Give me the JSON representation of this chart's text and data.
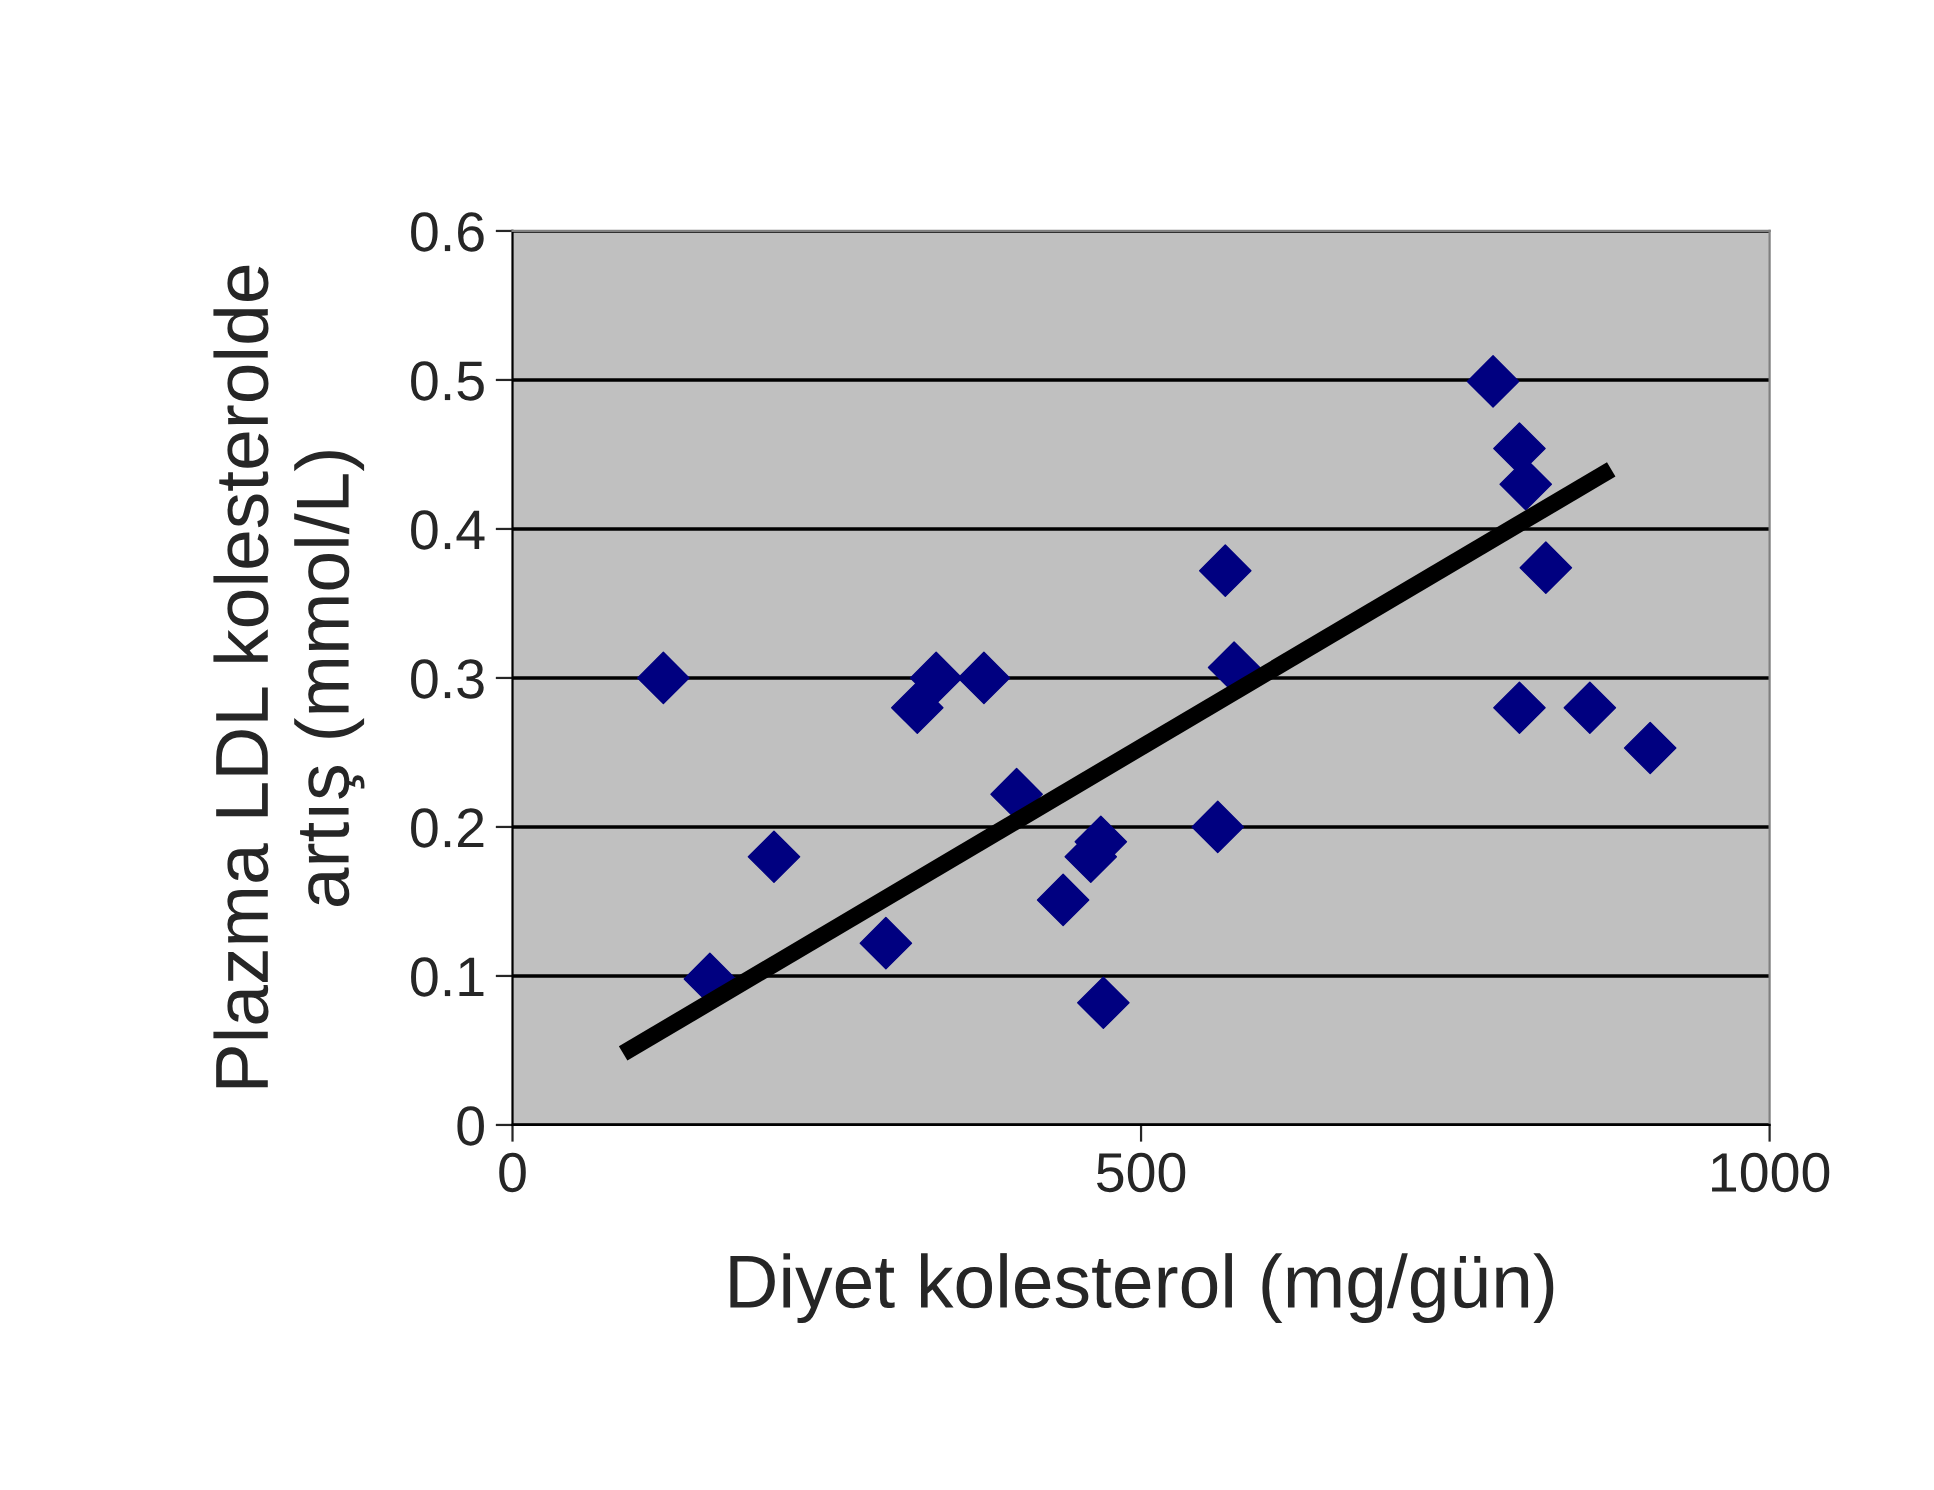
{
  "chart_data": {
    "type": "scatter",
    "xlabel": "Diyet kolesterol (mg/gün)",
    "ylabel": "Plazma LDL kolesterolde\nartış (mmol/L)",
    "xlim": [
      0,
      1000
    ],
    "xticks": [
      0,
      500,
      1000
    ],
    "ylim": [
      0,
      0.6
    ],
    "yticks": [
      0,
      0.1,
      0.2,
      0.3,
      0.4,
      0.5,
      0.6
    ],
    "grid": "y",
    "marker": "diamond",
    "series": [
      {
        "color": "#000080",
        "x": [
          120,
          157,
          208,
          297,
          322,
          337,
          375,
          401,
          438,
          460,
          468,
          470,
          561,
          567,
          574,
          780,
          801,
          806,
          822,
          801,
          857,
          905
        ],
        "values": [
          0.3,
          0.098,
          0.18,
          0.122,
          0.28,
          0.3,
          0.3,
          0.222,
          0.151,
          0.18,
          0.19,
          0.082,
          0.2,
          0.372,
          0.307,
          0.499,
          0.454,
          0.43,
          0.374,
          0.28,
          0.28,
          0.253
        ]
      },
      {
        "type": "line",
        "color": "#000000",
        "marker": "none",
        "x": [
          88,
          874
        ],
        "values": [
          0.048,
          0.44
        ]
      }
    ]
  }
}
